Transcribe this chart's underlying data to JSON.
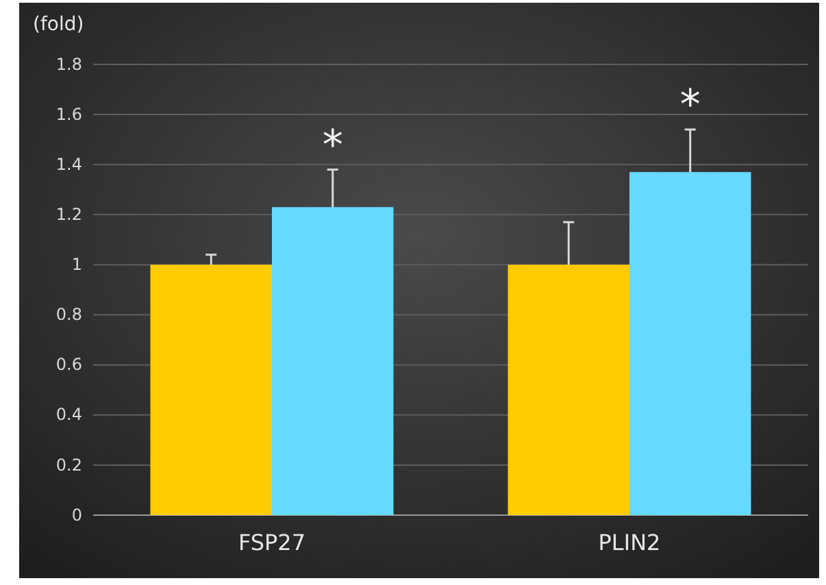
{
  "chart_data": {
    "type": "bar",
    "ylabel": "(fold)",
    "categories": [
      "FSP27",
      "PLIN2"
    ],
    "series": [
      {
        "color": "#ffcc00",
        "values": [
          1.0,
          1.0
        ],
        "errors": [
          0.04,
          0.17
        ]
      },
      {
        "color": "#66d9ff",
        "values": [
          1.23,
          1.37
        ],
        "errors": [
          0.15,
          0.17
        ]
      }
    ],
    "ylim": [
      0,
      1.8
    ],
    "yticks": [
      0,
      0.2,
      0.4,
      0.6,
      0.8,
      1,
      1.2,
      1.4,
      1.6,
      1.8
    ],
    "grid": "y",
    "annotations": [
      "*",
      "*"
    ]
  }
}
